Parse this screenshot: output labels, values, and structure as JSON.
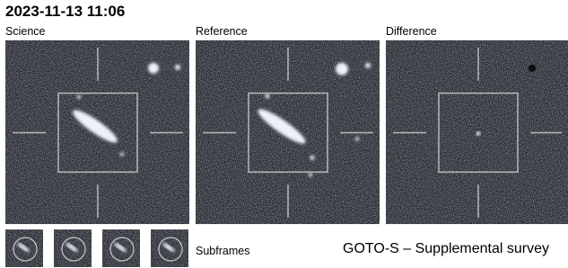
{
  "header": {
    "title": "2023-11-13 11:06"
  },
  "panels": [
    {
      "label": "Science"
    },
    {
      "label": "Reference"
    },
    {
      "label": "Difference"
    }
  ],
  "subframes": {
    "label": "Subframes"
  },
  "footer": {
    "survey": "GOTO-S – Supplemental survey"
  }
}
